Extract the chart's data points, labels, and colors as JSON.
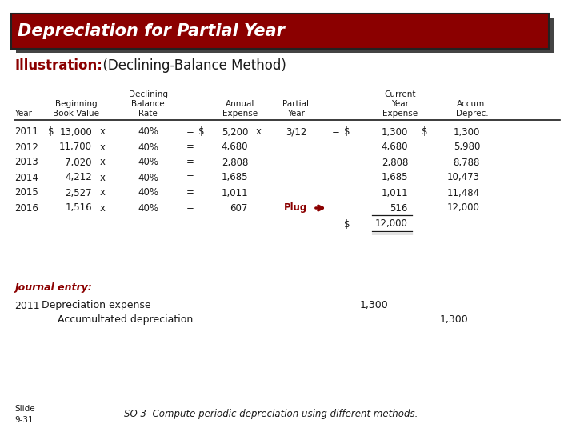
{
  "title": "Depreciation for Partial Year",
  "subtitle_bold": "Illustration:",
  "subtitle_normal": "  (Declining-Balance Method)",
  "bg_color": "#ffffff",
  "title_bg": "#8B0000",
  "title_text_color": "#ffffff",
  "dark_red": "#8B0000",
  "black": "#1a1a1a",
  "shadow_color": "#444444",
  "header_lines": [
    [
      "",
      "Beginning",
      "Declining",
      "",
      "Annual",
      "Partial",
      "Current",
      "Accum."
    ],
    [
      "",
      "",
      "Balance",
      "",
      "",
      "",
      "Year",
      ""
    ],
    [
      "Year",
      "Book Value",
      "Rate",
      "",
      "Expense",
      "Year",
      "Expense",
      "Deprec."
    ]
  ],
  "rows": [
    [
      "2011",
      "$",
      "13,000",
      "x",
      "40%",
      "=",
      "$",
      "5,200",
      "x",
      "3/12",
      "=",
      "$",
      "1,300",
      "$",
      "1,300"
    ],
    [
      "2012",
      "",
      "11,700",
      "x",
      "40%",
      "=",
      "",
      "4,680",
      "",
      "",
      "",
      "",
      "4,680",
      "",
      "5,980"
    ],
    [
      "2013",
      "",
      "7,020",
      "x",
      "40%",
      "=",
      "",
      "2,808",
      "",
      "",
      "",
      "",
      "2,808",
      "",
      "8,788"
    ],
    [
      "2014",
      "",
      "4,212",
      "x",
      "40%",
      "=",
      "",
      "1,685",
      "",
      "",
      "",
      "",
      "1,685",
      "",
      "10,473"
    ],
    [
      "2015",
      "",
      "2,527",
      "x",
      "40%",
      "=",
      "",
      "1,011",
      "",
      "",
      "",
      "",
      "1,011",
      "",
      "11,484"
    ],
    [
      "2016",
      "",
      "1,516",
      "x",
      "40%",
      "=",
      "",
      "607",
      "",
      "",
      "",
      "",
      "516",
      "",
      "12,000"
    ]
  ],
  "journal_label": "Journal entry:",
  "je_year": "2011",
  "je_debit_label": "Depreciation expense",
  "je_debit_amount": "1,300",
  "je_credit_label": "Accumultated depreciation",
  "je_credit_amount": "1,300",
  "slide_text": "Slide\n9-31",
  "so_text": "SO 3  Compute periodic depreciation using different methods."
}
